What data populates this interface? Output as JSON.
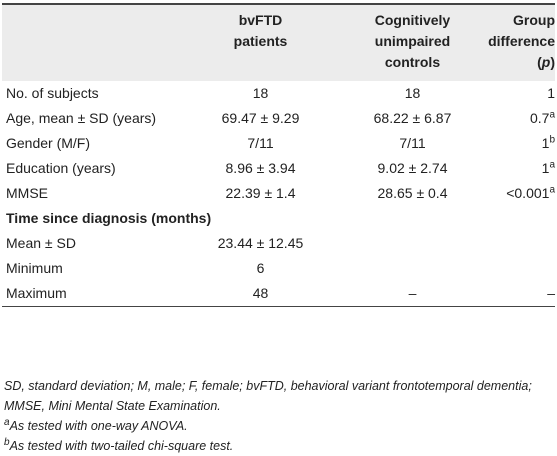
{
  "table": {
    "header": [
      null,
      [
        "bvFTD",
        "patients"
      ],
      [
        "Cognitively",
        "unimpaired",
        "controls"
      ],
      [
        "Group",
        "difference",
        {
          "pre": "(",
          "italic": "p",
          "post": ")"
        }
      ]
    ],
    "rows": [
      [
        "No. of subjects",
        "18",
        "18",
        "1"
      ],
      [
        "Age, mean ± SD (years)",
        "69.47 ± 9.29",
        "68.22 ± 6.87",
        {
          "text": "0.7",
          "sup": "a"
        }
      ],
      [
        "Gender (M/F)",
        "7/11",
        "7/11",
        {
          "text": "1",
          "sup": "b"
        }
      ],
      [
        "Education (years)",
        "8.96 ± 3.94",
        "9.02 ± 2.74",
        {
          "text": "1",
          "sup": "a"
        }
      ],
      [
        "MMSE",
        "22.39 ± 1.4",
        "28.65 ± 0.4",
        {
          "text": "<0.001",
          "sup": "a"
        }
      ],
      {
        "section": "Time since diagnosis (months)"
      },
      [
        "Mean ± SD",
        "23.44 ± 12.45",
        null,
        null
      ],
      [
        "Minimum",
        "6",
        null,
        null
      ],
      [
        "Maximum",
        "48",
        "–",
        "–"
      ]
    ]
  },
  "footnotes": [
    {
      "text": "SD, standard deviation; M, male; F, female; bvFTD, behavioral variant frontotemporal dementia; MMSE, Mini Mental State Examination."
    },
    {
      "sup": "a",
      "text": "As tested with one-way ANOVA."
    },
    {
      "sup": "b",
      "text": "As tested with two-tailed chi-square test."
    }
  ]
}
